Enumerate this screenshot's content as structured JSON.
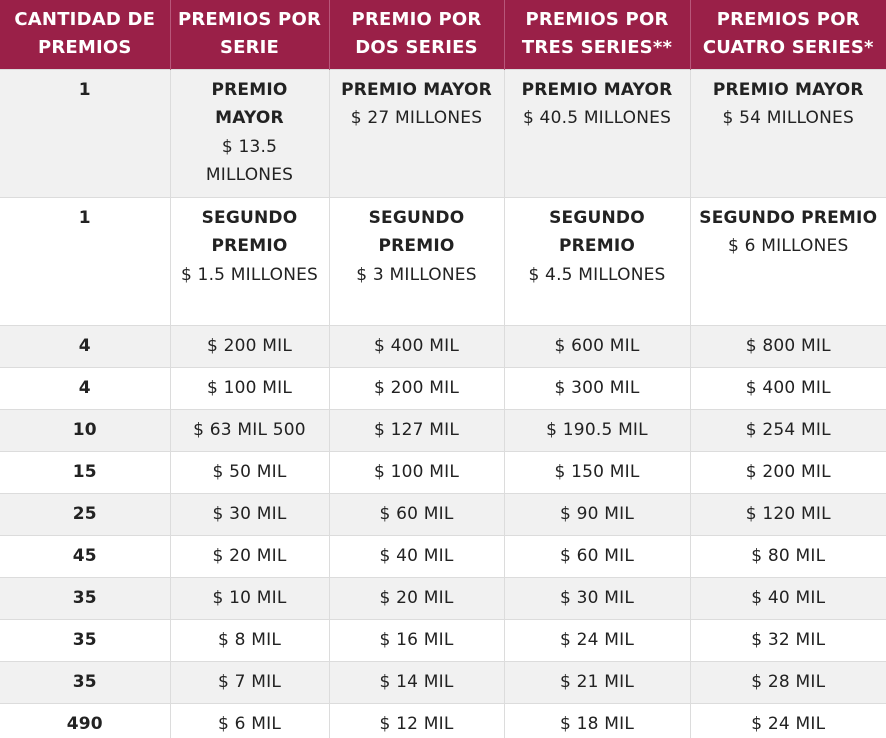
{
  "header": {
    "col0": "CANTIDAD DE PREMIOS",
    "col1": "PREMIOS POR SERIE",
    "col2": "PREMIO POR DOS SERIES",
    "col3": "PREMIOS POR TRES SERIES**",
    "col4": "PREMIOS POR CUATRO SERIES*"
  },
  "major_rows": [
    {
      "qty": "1",
      "cells": [
        {
          "title": "PREMIO MAYOR",
          "amount": "$ 13.5 MILLONES"
        },
        {
          "title": "PREMIO MAYOR",
          "amount": "$ 27 MILLONES"
        },
        {
          "title": "PREMIO MAYOR",
          "amount": "$ 40.5 MILLONES"
        },
        {
          "title": "PREMIO MAYOR",
          "amount": "$ 54 MILLONES"
        }
      ]
    },
    {
      "qty": "1",
      "cells": [
        {
          "title": "SEGUNDO PREMIO",
          "amount": "$ 1.5 MILLONES"
        },
        {
          "title": "SEGUNDO PREMIO",
          "amount": "$ 3 MILLONES"
        },
        {
          "title": "SEGUNDO PREMIO",
          "amount": "$ 4.5 MILLONES"
        },
        {
          "title": "SEGUNDO PREMIO",
          "amount": "$ 6 MILLONES"
        }
      ]
    }
  ],
  "rows": [
    {
      "qty": "4",
      "values": [
        "$ 200 MIL",
        "$ 400 MIL",
        "$ 600 MIL",
        "$ 800 MIL"
      ]
    },
    {
      "qty": "4",
      "values": [
        "$ 100 MIL",
        "$ 200 MIL",
        "$ 300 MIL",
        "$ 400 MIL"
      ]
    },
    {
      "qty": "10",
      "values": [
        "$ 63 MIL 500",
        "$ 127 MIL",
        "$ 190.5 MIL",
        "$ 254 MIL"
      ]
    },
    {
      "qty": "15",
      "values": [
        "$ 50 MIL",
        "$ 100 MIL",
        "$ 150 MIL",
        "$ 200 MIL"
      ]
    },
    {
      "qty": "25",
      "values": [
        "$ 30 MIL",
        "$ 60 MIL",
        "$ 90 MIL",
        "$ 120 MIL"
      ]
    },
    {
      "qty": "45",
      "values": [
        "$ 20 MIL",
        "$ 40 MIL",
        "$ 60 MIL",
        "$ 80 MIL"
      ]
    },
    {
      "qty": "35",
      "values": [
        "$ 10 MIL",
        "$ 20 MIL",
        "$ 30 MIL",
        "$ 40 MIL"
      ]
    },
    {
      "qty": "35",
      "values": [
        "$ 8 MIL",
        "$ 16 MIL",
        "$ 24 MIL",
        "$ 32 MIL"
      ]
    },
    {
      "qty": "35",
      "values": [
        "$ 7 MIL",
        "$ 14 MIL",
        "$ 21 MIL",
        "$ 28 MIL"
      ]
    },
    {
      "qty": "490",
      "values": [
        "$ 6 MIL",
        "$ 12 MIL",
        "$ 18 MIL",
        "$ 24 MIL"
      ]
    }
  ],
  "colors": {
    "header_bg": "#9a2048",
    "header_text": "#ffffff",
    "row_alt_bg": "#f1f1f1"
  }
}
